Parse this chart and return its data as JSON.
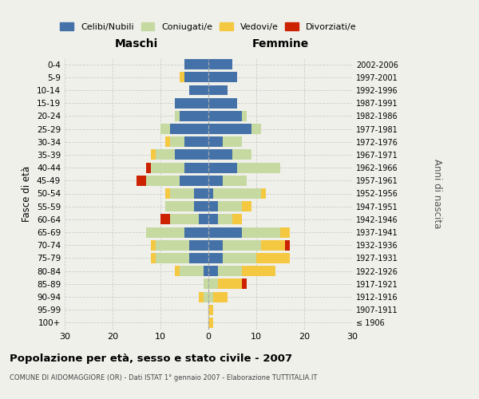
{
  "age_groups": [
    "100+",
    "95-99",
    "90-94",
    "85-89",
    "80-84",
    "75-79",
    "70-74",
    "65-69",
    "60-64",
    "55-59",
    "50-54",
    "45-49",
    "40-44",
    "35-39",
    "30-34",
    "25-29",
    "20-24",
    "15-19",
    "10-14",
    "5-9",
    "0-4"
  ],
  "birth_years": [
    "≤ 1906",
    "1907-1911",
    "1912-1916",
    "1917-1921",
    "1922-1926",
    "1927-1931",
    "1932-1936",
    "1937-1941",
    "1942-1946",
    "1947-1951",
    "1952-1956",
    "1957-1961",
    "1962-1966",
    "1967-1971",
    "1972-1976",
    "1977-1981",
    "1982-1986",
    "1987-1991",
    "1992-1996",
    "1997-2001",
    "2002-2006"
  ],
  "maschi": {
    "celibe": [
      0,
      0,
      0,
      0,
      1,
      4,
      4,
      5,
      2,
      3,
      3,
      6,
      5,
      7,
      5,
      8,
      6,
      7,
      4,
      5,
      5
    ],
    "coniugato": [
      0,
      0,
      1,
      1,
      5,
      7,
      7,
      8,
      6,
      6,
      5,
      7,
      7,
      4,
      3,
      2,
      1,
      0,
      0,
      0,
      0
    ],
    "vedovo": [
      0,
      0,
      1,
      0,
      1,
      1,
      1,
      0,
      0,
      0,
      1,
      0,
      0,
      1,
      1,
      0,
      0,
      0,
      0,
      1,
      0
    ],
    "divorziato": [
      0,
      0,
      0,
      0,
      0,
      0,
      0,
      0,
      2,
      0,
      0,
      2,
      1,
      0,
      0,
      0,
      0,
      0,
      0,
      0,
      0
    ]
  },
  "femmine": {
    "nubile": [
      0,
      0,
      0,
      0,
      2,
      3,
      3,
      7,
      2,
      2,
      1,
      3,
      6,
      5,
      3,
      9,
      7,
      6,
      4,
      6,
      5
    ],
    "coniugata": [
      0,
      0,
      1,
      2,
      5,
      7,
      8,
      8,
      3,
      5,
      10,
      5,
      9,
      4,
      4,
      2,
      1,
      0,
      0,
      0,
      0
    ],
    "vedova": [
      1,
      1,
      3,
      5,
      7,
      7,
      5,
      2,
      2,
      2,
      1,
      0,
      0,
      0,
      0,
      0,
      0,
      0,
      0,
      0,
      0
    ],
    "divorziata": [
      0,
      0,
      0,
      1,
      0,
      0,
      1,
      0,
      0,
      0,
      0,
      0,
      0,
      0,
      0,
      0,
      0,
      0,
      0,
      0,
      0
    ]
  },
  "colors": {
    "celibe": "#4472a8",
    "coniugato": "#c5d9a0",
    "vedovo": "#f5c842",
    "divorziato": "#cc2200"
  },
  "xlim": 30,
  "title": "Popolazione per età, sesso e stato civile - 2007",
  "subtitle": "COMUNE DI AIDOMAGGIORE (OR) - Dati ISTAT 1° gennaio 2007 - Elaborazione TUTTITALIA.IT",
  "label_maschi": "Maschi",
  "label_femmine": "Femmine",
  "ylabel_left": "Fasce di età",
  "ylabel_right": "Anni di nascita",
  "legend_labels": [
    "Celibi/Nubili",
    "Coniugati/e",
    "Vedovi/e",
    "Divorziati/e"
  ],
  "bg_color": "#f0f0eb",
  "grid_color": "#cccccc"
}
